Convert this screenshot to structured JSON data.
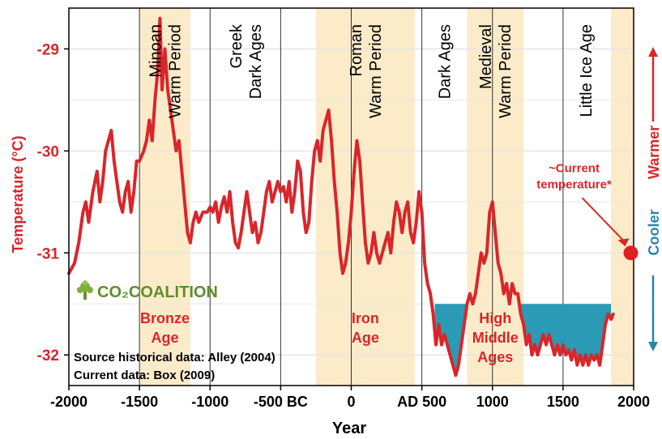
{
  "chart_data": {
    "type": "line",
    "xlabel": "Year",
    "ylabel": "Temperature (°C)",
    "xlim": [
      -2000,
      2000
    ],
    "ylim": [
      -32.3,
      -28.6
    ],
    "x_ticks": [
      {
        "value": -2000,
        "label": "-2000"
      },
      {
        "value": -1500,
        "label": "-1500"
      },
      {
        "value": -1000,
        "label": "-1000"
      },
      {
        "value": -500,
        "label": "-500 BC"
      },
      {
        "value": 0,
        "label": "0"
      },
      {
        "value": 500,
        "label": "AD 500"
      },
      {
        "value": 1000,
        "label": "1000"
      },
      {
        "value": 1500,
        "label": "1500"
      },
      {
        "value": 2000,
        "label": "2000"
      }
    ],
    "y_ticks": [
      {
        "value": -29,
        "label": "-29"
      },
      {
        "value": -30,
        "label": "-30"
      },
      {
        "value": -31,
        "label": "-31"
      },
      {
        "value": -32,
        "label": "-32"
      }
    ],
    "grid": true,
    "series": [
      {
        "color": "#d9262b",
        "points": [
          [
            -2000,
            -31.2
          ],
          [
            -1960,
            -31.1
          ],
          [
            -1930,
            -30.9
          ],
          [
            -1900,
            -30.6
          ],
          [
            -1880,
            -30.5
          ],
          [
            -1860,
            -30.7
          ],
          [
            -1830,
            -30.4
          ],
          [
            -1800,
            -30.2
          ],
          [
            -1780,
            -30.5
          ],
          [
            -1760,
            -30.3
          ],
          [
            -1740,
            -30.0
          ],
          [
            -1720,
            -29.9
          ],
          [
            -1700,
            -29.8
          ],
          [
            -1680,
            -30.1
          ],
          [
            -1660,
            -30.3
          ],
          [
            -1640,
            -30.5
          ],
          [
            -1620,
            -30.6
          ],
          [
            -1600,
            -30.4
          ],
          [
            -1580,
            -30.3
          ],
          [
            -1560,
            -30.6
          ],
          [
            -1540,
            -30.4
          ],
          [
            -1520,
            -30.1
          ],
          [
            -1500,
            -30.1
          ],
          [
            -1470,
            -30.0
          ],
          [
            -1450,
            -29.9
          ],
          [
            -1430,
            -29.7
          ],
          [
            -1410,
            -29.9
          ],
          [
            -1390,
            -29.5
          ],
          [
            -1370,
            -29.2
          ],
          [
            -1355,
            -28.7
          ],
          [
            -1340,
            -29.4
          ],
          [
            -1320,
            -29.0
          ],
          [
            -1300,
            -29.4
          ],
          [
            -1280,
            -29.6
          ],
          [
            -1260,
            -29.8
          ],
          [
            -1240,
            -30.0
          ],
          [
            -1220,
            -29.9
          ],
          [
            -1200,
            -30.2
          ],
          [
            -1180,
            -30.5
          ],
          [
            -1160,
            -30.8
          ],
          [
            -1140,
            -30.9
          ],
          [
            -1120,
            -30.7
          ],
          [
            -1100,
            -30.6
          ],
          [
            -1080,
            -30.7
          ],
          [
            -1050,
            -30.6
          ],
          [
            -1020,
            -30.6
          ],
          [
            -1000,
            -30.55
          ],
          [
            -980,
            -30.6
          ],
          [
            -960,
            -30.5
          ],
          [
            -940,
            -30.7
          ],
          [
            -920,
            -30.55
          ],
          [
            -900,
            -30.45
          ],
          [
            -880,
            -30.6
          ],
          [
            -860,
            -30.4
          ],
          [
            -840,
            -30.7
          ],
          [
            -820,
            -30.9
          ],
          [
            -800,
            -30.95
          ],
          [
            -780,
            -30.8
          ],
          [
            -760,
            -30.6
          ],
          [
            -740,
            -30.4
          ],
          [
            -720,
            -30.6
          ],
          [
            -700,
            -30.8
          ],
          [
            -680,
            -30.7
          ],
          [
            -660,
            -30.9
          ],
          [
            -640,
            -30.8
          ],
          [
            -620,
            -30.6
          ],
          [
            -600,
            -30.4
          ],
          [
            -580,
            -30.3
          ],
          [
            -560,
            -30.5
          ],
          [
            -540,
            -30.4
          ],
          [
            -520,
            -30.3
          ],
          [
            -500,
            -30.4
          ],
          [
            -480,
            -30.35
          ],
          [
            -460,
            -30.5
          ],
          [
            -440,
            -30.3
          ],
          [
            -420,
            -30.6
          ],
          [
            -400,
            -30.4
          ],
          [
            -380,
            -30.1
          ],
          [
            -360,
            -30.2
          ],
          [
            -340,
            -30.6
          ],
          [
            -320,
            -30.8
          ],
          [
            -300,
            -30.7
          ],
          [
            -280,
            -30.3
          ],
          [
            -260,
            -30.0
          ],
          [
            -240,
            -29.9
          ],
          [
            -220,
            -30.1
          ],
          [
            -200,
            -29.8
          ],
          [
            -180,
            -29.7
          ],
          [
            -160,
            -29.6
          ],
          [
            -140,
            -29.9
          ],
          [
            -120,
            -30.3
          ],
          [
            -100,
            -30.6
          ],
          [
            -80,
            -31.0
          ],
          [
            -60,
            -31.2
          ],
          [
            -40,
            -31.1
          ],
          [
            -20,
            -30.9
          ],
          [
            0,
            -30.6
          ],
          [
            20,
            -30.2
          ],
          [
            40,
            -29.9
          ],
          [
            60,
            -30.1
          ],
          [
            80,
            -30.5
          ],
          [
            100,
            -30.9
          ],
          [
            120,
            -31.1
          ],
          [
            140,
            -31.0
          ],
          [
            160,
            -30.8
          ],
          [
            180,
            -31.0
          ],
          [
            200,
            -31.1
          ],
          [
            220,
            -31.0
          ],
          [
            240,
            -30.9
          ],
          [
            260,
            -30.8
          ],
          [
            280,
            -31.0
          ],
          [
            300,
            -30.7
          ],
          [
            320,
            -30.5
          ],
          [
            340,
            -30.6
          ],
          [
            360,
            -30.8
          ],
          [
            380,
            -30.6
          ],
          [
            400,
            -30.5
          ],
          [
            420,
            -30.8
          ],
          [
            440,
            -30.9
          ],
          [
            460,
            -30.7
          ],
          [
            480,
            -30.4
          ],
          [
            500,
            -30.6
          ],
          [
            520,
            -31.1
          ],
          [
            540,
            -31.3
          ],
          [
            560,
            -31.4
          ],
          [
            580,
            -31.6
          ],
          [
            600,
            -31.9
          ],
          [
            620,
            -31.7
          ],
          [
            640,
            -31.9
          ],
          [
            660,
            -31.8
          ],
          [
            680,
            -31.9
          ],
          [
            700,
            -32.0
          ],
          [
            720,
            -32.1
          ],
          [
            740,
            -32.2
          ],
          [
            760,
            -32.1
          ],
          [
            780,
            -31.9
          ],
          [
            800,
            -31.7
          ],
          [
            820,
            -31.5
          ],
          [
            840,
            -31.4
          ],
          [
            860,
            -31.5
          ],
          [
            880,
            -31.4
          ],
          [
            900,
            -31.2
          ],
          [
            920,
            -31.0
          ],
          [
            940,
            -31.1
          ],
          [
            960,
            -31.0
          ],
          [
            980,
            -30.6
          ],
          [
            1000,
            -30.5
          ],
          [
            1020,
            -30.8
          ],
          [
            1040,
            -31.1
          ],
          [
            1060,
            -31.2
          ],
          [
            1080,
            -31.4
          ],
          [
            1100,
            -31.3
          ],
          [
            1120,
            -31.5
          ],
          [
            1140,
            -31.3
          ],
          [
            1160,
            -31.4
          ],
          [
            1180,
            -31.4
          ],
          [
            1200,
            -31.6
          ],
          [
            1220,
            -31.7
          ],
          [
            1240,
            -31.9
          ],
          [
            1260,
            -31.8
          ],
          [
            1280,
            -32.0
          ],
          [
            1300,
            -31.9
          ],
          [
            1320,
            -32.0
          ],
          [
            1340,
            -31.9
          ],
          [
            1360,
            -31.8
          ],
          [
            1380,
            -31.9
          ],
          [
            1400,
            -31.8
          ],
          [
            1420,
            -31.9
          ],
          [
            1440,
            -32.0
          ],
          [
            1460,
            -31.9
          ],
          [
            1480,
            -32.0
          ],
          [
            1500,
            -31.9
          ],
          [
            1520,
            -32.0
          ],
          [
            1540,
            -31.95
          ],
          [
            1560,
            -32.05
          ],
          [
            1580,
            -31.95
          ],
          [
            1600,
            -32.1
          ],
          [
            1620,
            -32.0
          ],
          [
            1640,
            -32.1
          ],
          [
            1660,
            -32.0
          ],
          [
            1680,
            -32.1
          ],
          [
            1700,
            -32.0
          ],
          [
            1720,
            -32.05
          ],
          [
            1740,
            -32.0
          ],
          [
            1760,
            -32.1
          ],
          [
            1780,
            -31.9
          ],
          [
            1800,
            -31.7
          ],
          [
            1820,
            -31.6
          ],
          [
            1840,
            -31.65
          ],
          [
            1855,
            -31.6
          ]
        ]
      }
    ],
    "shaded_periods": [
      {
        "start": -1500,
        "end": -1140,
        "label": "Minoan  Warm Period",
        "era_label": [
          "Bronze",
          "Age"
        ]
      },
      {
        "start": -250,
        "end": 450,
        "label": "Roman Warm Period",
        "era_label": [
          "Iron",
          "Age"
        ]
      },
      {
        "start": 820,
        "end": 1220,
        "label": "Medieval Warm Period",
        "era_label": [
          "High",
          "Middle",
          "Ages"
        ]
      },
      {
        "start": 1840,
        "end": 2000,
        "label": "",
        "era_label": []
      }
    ],
    "unshaded_period_labels": [
      {
        "start": -1000,
        "end": -500,
        "label": "Greek Dark Ages"
      },
      {
        "start": 500,
        "end": 820,
        "label": "Dark Ages"
      },
      {
        "start": 1500,
        "end": 1820,
        "label": "Little Ice Age"
      }
    ],
    "below_current_fill": {
      "from": 590,
      "to": 1840,
      "threshold": -31.5,
      "color": "#2b9bb5"
    },
    "current_temperature": {
      "x": 1980,
      "y": -31.0,
      "label": "~Current temperature*"
    },
    "side_labels": {
      "warmer": "Warmer",
      "cooler": "Cooler"
    },
    "colors": {
      "line": "#d9262b",
      "band": "#fcebc8",
      "blue": "#2b9bb5",
      "axis": "#000000",
      "grid": "#e6e6e6"
    }
  },
  "logo": {
    "text": "CO₂COALITION"
  },
  "sources": [
    "Source historical data: Alley (2004)",
    "Current data: Box (2009)"
  ]
}
